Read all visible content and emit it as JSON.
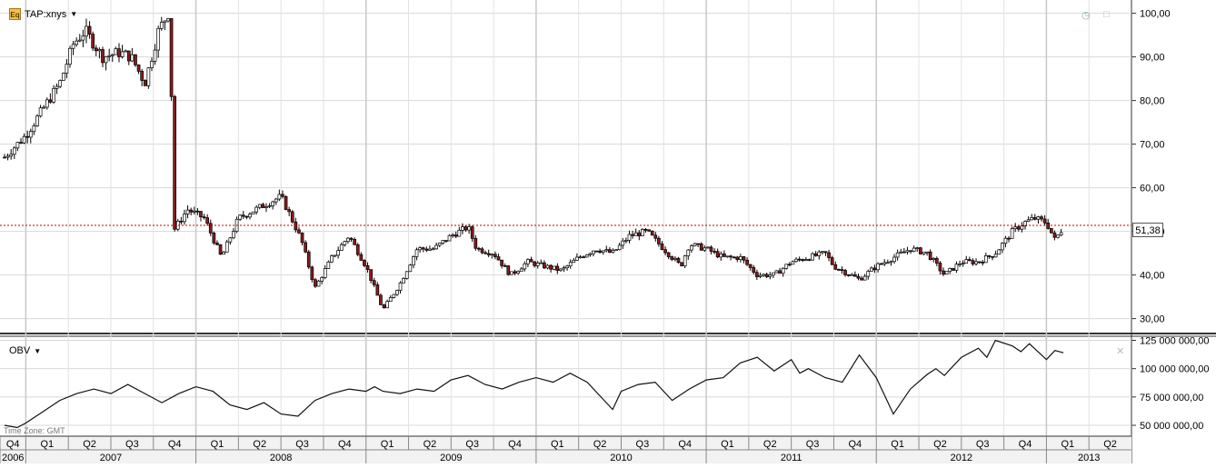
{
  "header": {
    "symbol": "TAP:xnys",
    "icon_text": "Eq",
    "indicator": "OBV",
    "timezone": "Time Zone: GMT"
  },
  "last_price_label": "51,38",
  "colors": {
    "up": "#ffffff",
    "down": "#8b1a1a",
    "wick": "#000000",
    "grid": "#d8d8d8",
    "last_line": "#c00000"
  },
  "chart_data": [
    {
      "type": "candlestick",
      "title": "",
      "ylim": [
        27,
        102
      ],
      "y_ticks": [
        "100,00",
        "90,00",
        "80,00",
        "70,00",
        "60,00",
        "50,00",
        "40,00",
        "30,00"
      ],
      "y_tick_values": [
        100,
        90,
        80,
        70,
        60,
        50,
        40,
        30
      ],
      "last_value": 51.38,
      "x_range": [
        2006.875,
        2013.5
      ],
      "series_path": [
        [
          2006.875,
          67
        ],
        [
          2007.0,
          72
        ],
        [
          2007.1,
          78
        ],
        [
          2007.2,
          84
        ],
        [
          2007.28,
          93
        ],
        [
          2007.35,
          96
        ],
        [
          2007.45,
          90
        ],
        [
          2007.55,
          91
        ],
        [
          2007.62,
          90
        ],
        [
          2007.7,
          84
        ],
        [
          2007.78,
          96
        ],
        [
          2007.85,
          101
        ],
        [
          2007.865,
          50
        ],
        [
          2007.95,
          55
        ],
        [
          2008.05,
          53
        ],
        [
          2008.15,
          44
        ],
        [
          2008.25,
          53
        ],
        [
          2008.4,
          56
        ],
        [
          2008.5,
          58
        ],
        [
          2008.55,
          54
        ],
        [
          2008.62,
          48
        ],
        [
          2008.7,
          37
        ],
        [
          2008.8,
          44
        ],
        [
          2008.9,
          49
        ],
        [
          2009.0,
          42
        ],
        [
          2009.1,
          32
        ],
        [
          2009.2,
          38
        ],
        [
          2009.3,
          46
        ],
        [
          2009.4,
          46
        ],
        [
          2009.5,
          49
        ],
        [
          2009.6,
          51
        ],
        [
          2009.65,
          46
        ],
        [
          2009.75,
          45
        ],
        [
          2009.85,
          40
        ],
        [
          2009.95,
          43
        ],
        [
          2010.05,
          42
        ],
        [
          2010.15,
          41
        ],
        [
          2010.25,
          44
        ],
        [
          2010.35,
          46
        ],
        [
          2010.45,
          45
        ],
        [
          2010.55,
          49
        ],
        [
          2010.65,
          50
        ],
        [
          2010.75,
          46
        ],
        [
          2010.85,
          42
        ],
        [
          2010.9,
          47
        ],
        [
          2011.0,
          46
        ],
        [
          2011.1,
          44
        ],
        [
          2011.2,
          44
        ],
        [
          2011.3,
          40
        ],
        [
          2011.4,
          40
        ],
        [
          2011.5,
          43
        ],
        [
          2011.6,
          44
        ],
        [
          2011.7,
          45
        ],
        [
          2011.75,
          42
        ],
        [
          2011.85,
          40
        ],
        [
          2011.9,
          39
        ],
        [
          2012.0,
          42
        ],
        [
          2012.1,
          44
        ],
        [
          2012.2,
          46
        ],
        [
          2012.3,
          45
        ],
        [
          2012.4,
          40
        ],
        [
          2012.5,
          43
        ],
        [
          2012.6,
          43
        ],
        [
          2012.7,
          45
        ],
        [
          2012.8,
          50
        ],
        [
          2012.87,
          52
        ],
        [
          2012.93,
          53
        ],
        [
          2013.0,
          52
        ],
        [
          2013.05,
          48
        ],
        [
          2013.1,
          51
        ]
      ]
    },
    {
      "type": "line",
      "title": "",
      "ylim": [
        42000000,
        127000000
      ],
      "y_ticks": [
        "125 000 000,00",
        "100 000 000,00",
        "75 000 000,00",
        "50 000 000,00"
      ],
      "y_tick_values": [
        125000000,
        100000000,
        75000000,
        50000000
      ],
      "x_range": [
        2006.875,
        2013.5
      ],
      "series": [
        {
          "x": [
            2006.875,
            2006.95,
            2007.0,
            2007.1,
            2007.2,
            2007.3,
            2007.4,
            2007.5,
            2007.6,
            2007.7,
            2007.8,
            2007.9,
            2008.0,
            2008.1,
            2008.2,
            2008.3,
            2008.4,
            2008.5,
            2008.6,
            2008.7,
            2008.8,
            2008.9,
            2009.0,
            2009.05,
            2009.1,
            2009.2,
            2009.3,
            2009.4,
            2009.5,
            2009.6,
            2009.7,
            2009.8,
            2009.9,
            2010.0,
            2010.1,
            2010.2,
            2010.3,
            2010.4,
            2010.45,
            2010.5,
            2010.6,
            2010.7,
            2010.8,
            2010.9,
            2011.0,
            2011.1,
            2011.2,
            2011.3,
            2011.4,
            2011.5,
            2011.55,
            2011.6,
            2011.7,
            2011.8,
            2011.9,
            2012.0,
            2012.1,
            2012.2,
            2012.3,
            2012.35,
            2012.4,
            2012.5,
            2012.6,
            2012.65,
            2012.7,
            2012.8,
            2012.85,
            2012.9,
            2013.0,
            2013.05,
            2013.1
          ],
          "values": [
            50000000,
            48000000,
            52000000,
            62000000,
            72000000,
            78000000,
            82000000,
            78000000,
            86000000,
            78000000,
            70000000,
            78000000,
            84000000,
            80000000,
            68000000,
            64000000,
            70000000,
            60000000,
            58000000,
            72000000,
            78000000,
            82000000,
            80000000,
            84000000,
            80000000,
            78000000,
            82000000,
            80000000,
            90000000,
            94000000,
            86000000,
            82000000,
            88000000,
            92000000,
            88000000,
            96000000,
            88000000,
            72000000,
            64000000,
            80000000,
            86000000,
            88000000,
            72000000,
            82000000,
            90000000,
            92000000,
            105000000,
            110000000,
            98000000,
            108000000,
            96000000,
            100000000,
            92000000,
            88000000,
            112000000,
            92000000,
            60000000,
            82000000,
            95000000,
            100000000,
            94000000,
            110000000,
            118000000,
            110000000,
            125000000,
            120000000,
            115000000,
            122000000,
            108000000,
            116000000,
            114000000
          ]
        }
      ]
    }
  ],
  "x_axis": {
    "quarters": [
      "Q4",
      "Q1",
      "Q2",
      "Q3",
      "Q4",
      "Q1",
      "Q2",
      "Q3",
      "Q4",
      "Q1",
      "Q2",
      "Q3",
      "Q4",
      "Q1",
      "Q2",
      "Q3",
      "Q4",
      "Q1",
      "Q2",
      "Q3",
      "Q4",
      "Q1",
      "Q2",
      "Q3",
      "Q4",
      "Q1",
      "Q2"
    ],
    "quarter_starts": [
      2006.75,
      2007.0,
      2007.25,
      2007.5,
      2007.75,
      2008.0,
      2008.25,
      2008.5,
      2008.75,
      2009.0,
      2009.25,
      2009.5,
      2009.75,
      2010.0,
      2010.25,
      2010.5,
      2010.75,
      2011.0,
      2011.25,
      2011.5,
      2011.75,
      2012.0,
      2012.25,
      2012.5,
      2012.75,
      2013.0,
      2013.25
    ],
    "years": [
      "2006",
      "2007",
      "2008",
      "2009",
      "2010",
      "2011",
      "2012",
      "2013"
    ],
    "year_starts": [
      2006.0,
      2007.0,
      2008.0,
      2009.0,
      2010.0,
      2011.0,
      2012.0,
      2013.0
    ]
  }
}
